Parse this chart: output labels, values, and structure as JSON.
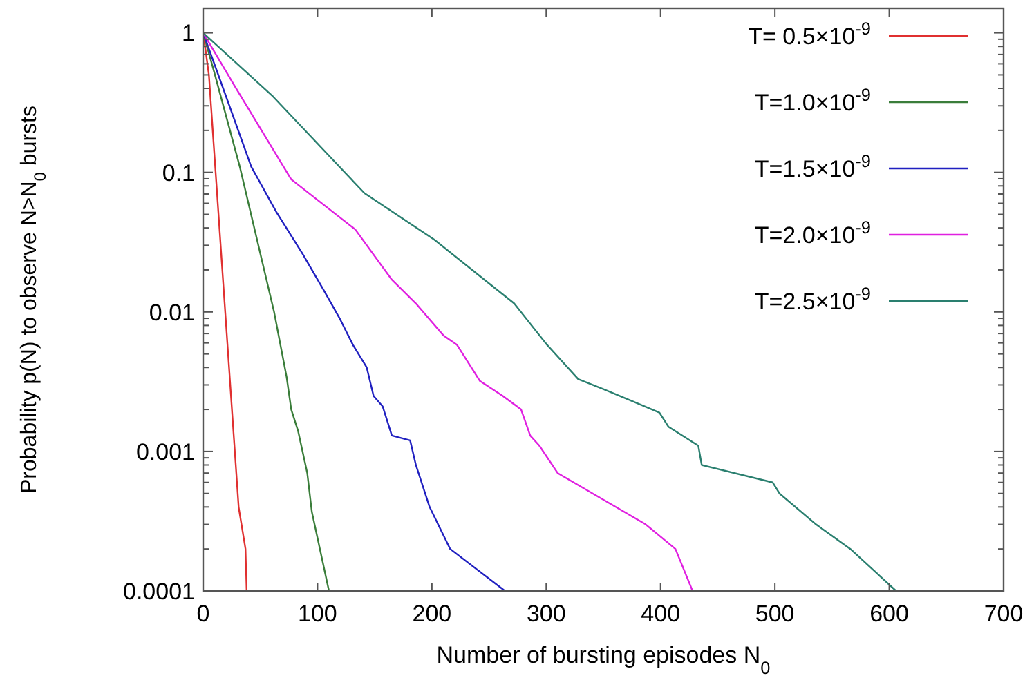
{
  "chart_data": {
    "type": "line",
    "xlabel": "Number of bursting episodes N$_{0}$",
    "ylabel": "Probability  p(N) to observe N>N$_{0}$ bursts",
    "log": "y",
    "xlim": [
      0,
      700
    ],
    "xticks": [
      0,
      100,
      200,
      300,
      400,
      500,
      600,
      700
    ],
    "ylim": [
      0.0001,
      1.5
    ],
    "yticks": [
      {
        "value": 0.0001,
        "label": "0.0001"
      },
      {
        "value": 0.0002,
        "label": null
      },
      {
        "value": 0.0003,
        "label": null
      },
      {
        "value": 0.0004,
        "label": null
      },
      {
        "value": 0.0005,
        "label": null
      },
      {
        "value": 0.0006,
        "label": null
      },
      {
        "value": 0.0007,
        "label": null
      },
      {
        "value": 0.0008,
        "label": null
      },
      {
        "value": 0.0009,
        "label": null
      },
      {
        "value": 0.001,
        "label": "0.001"
      },
      {
        "value": 0.002,
        "label": null
      },
      {
        "value": 0.003,
        "label": null
      },
      {
        "value": 0.004,
        "label": null
      },
      {
        "value": 0.005,
        "label": null
      },
      {
        "value": 0.006,
        "label": null
      },
      {
        "value": 0.007,
        "label": null
      },
      {
        "value": 0.008,
        "label": null
      },
      {
        "value": 0.009,
        "label": null
      },
      {
        "value": 0.01,
        "label": "0.01"
      },
      {
        "value": 0.02,
        "label": null
      },
      {
        "value": 0.03,
        "label": null
      },
      {
        "value": 0.04,
        "label": null
      },
      {
        "value": 0.05,
        "label": null
      },
      {
        "value": 0.06,
        "label": null
      },
      {
        "value": 0.07,
        "label": null
      },
      {
        "value": 0.08,
        "label": null
      },
      {
        "value": 0.09,
        "label": null
      },
      {
        "value": 0.1,
        "label": "0.1"
      },
      {
        "value": 0.2,
        "label": null
      },
      {
        "value": 0.3,
        "label": null
      },
      {
        "value": 0.4,
        "label": null
      },
      {
        "value": 0.5,
        "label": null
      },
      {
        "value": 0.6,
        "label": null
      },
      {
        "value": 0.7,
        "label": null
      },
      {
        "value": 0.8,
        "label": null
      },
      {
        "value": 0.9,
        "label": null
      },
      {
        "value": 1,
        "label": "1"
      }
    ],
    "grid": false,
    "legend": "top right",
    "marker": "none",
    "line_style": "solid",
    "series": [
      {
        "name": "T= 0.5×10$^{-9}$",
        "color": "#e03030",
        "x": [
          0,
          5,
          27,
          31,
          37,
          38
        ],
        "values": [
          1,
          0.5,
          0.0012,
          0.0004,
          0.0002,
          0.0001
        ]
      },
      {
        "name": "T=1.0×10$^{-9}$",
        "color": "#3a7d3a",
        "x": [
          0,
          10,
          32,
          62,
          73,
          77,
          83,
          91,
          95,
          110
        ],
        "values": [
          1,
          0.51,
          0.11,
          0.01,
          0.0034,
          0.002,
          0.0014,
          0.0007,
          0.00037,
          0.0001
        ]
      },
      {
        "name": "T=1.5×10$^{-9}$",
        "color": "#2020c0",
        "x": [
          0,
          20,
          42,
          64,
          87,
          105,
          119,
          131,
          143,
          149,
          157,
          165,
          181,
          186,
          198,
          216,
          264
        ],
        "values": [
          1,
          0.35,
          0.11,
          0.052,
          0.026,
          0.0145,
          0.0091,
          0.0058,
          0.004,
          0.0025,
          0.0021,
          0.0013,
          0.0012,
          0.0008,
          0.0004,
          0.0002,
          0.0001
        ]
      },
      {
        "name": "T=2.0×10$^{-9}$",
        "color": "#e020e0",
        "x": [
          0,
          28,
          77,
          133,
          165,
          186,
          210,
          222,
          242,
          262,
          278,
          286,
          294,
          310,
          387,
          413,
          428
        ],
        "values": [
          1,
          0.41,
          0.089,
          0.039,
          0.017,
          0.0115,
          0.0068,
          0.0058,
          0.0032,
          0.0025,
          0.002,
          0.0013,
          0.0011,
          0.0007,
          0.0003,
          0.0002,
          0.0001
        ]
      },
      {
        "name": "T=2.5×10$^{-9}$",
        "color": "#2a7f6f",
        "x": [
          0,
          61,
          141,
          202,
          246,
          272,
          300,
          328,
          350,
          375,
          399,
          407,
          433,
          436,
          498,
          504,
          536,
          566,
          606
        ],
        "values": [
          1,
          0.35,
          0.071,
          0.033,
          0.017,
          0.0115,
          0.0059,
          0.0033,
          0.0028,
          0.0023,
          0.0019,
          0.0015,
          0.0011,
          0.0008,
          0.0006,
          0.0005,
          0.0003,
          0.0002,
          0.0001
        ]
      }
    ]
  }
}
